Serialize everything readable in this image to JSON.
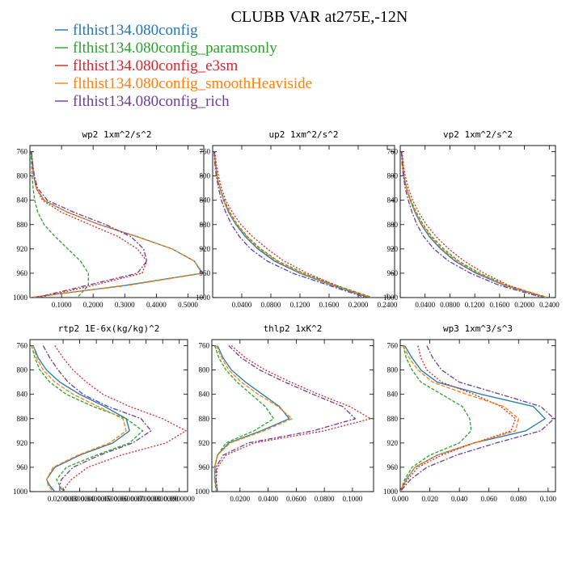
{
  "figure": {
    "title": "CLUBB VAR at275E,-12N"
  },
  "series": [
    {
      "name": "flthist134.080config",
      "color": "#1f77b4",
      "dash": ""
    },
    {
      "name": "flthist134.080config_paramsonly",
      "color": "#2ca02c",
      "dash": "4,2"
    },
    {
      "name": "flthist134.080config_e3sm",
      "color": "#d62728",
      "dash": "2,2"
    },
    {
      "name": "flthist134.080config_smoothHeaviside",
      "color": "#ff7f0e",
      "dash": "5,2"
    },
    {
      "name": "flthist134.080config_rich",
      "color": "#6a3d9a",
      "dash": "6,2,2,2"
    }
  ],
  "chart_data": [
    {
      "type": "line",
      "title": "wp2  1xm^2/s^2",
      "xlim": [
        0.0,
        0.55
      ],
      "ylim": [
        1000,
        750
      ],
      "xticks": [
        "0.1000",
        "0.2000",
        "0.3000",
        "0.4000",
        "0.5000"
      ],
      "xtick_values": [
        0.1,
        0.2,
        0.3,
        0.4,
        0.5
      ],
      "yticks": [
        "760",
        "800",
        "840",
        "880",
        "920",
        "960",
        "1000"
      ],
      "y": [
        760,
        780,
        800,
        820,
        840,
        860,
        880,
        900,
        920,
        940,
        960,
        980,
        1000
      ],
      "series": [
        {
          "values": [
            0.005,
            0.008,
            0.012,
            0.02,
            0.045,
            0.12,
            0.22,
            0.34,
            0.45,
            0.52,
            0.545,
            0.3,
            0.0
          ]
        },
        {
          "values": [
            0.003,
            0.005,
            0.007,
            0.01,
            0.015,
            0.025,
            0.045,
            0.08,
            0.12,
            0.16,
            0.185,
            0.185,
            0.15
          ]
        },
        {
          "values": [
            0.005,
            0.008,
            0.012,
            0.02,
            0.04,
            0.1,
            0.19,
            0.28,
            0.34,
            0.37,
            0.355,
            0.2,
            0.03
          ]
        },
        {
          "values": [
            0.005,
            0.008,
            0.012,
            0.02,
            0.045,
            0.12,
            0.22,
            0.34,
            0.45,
            0.52,
            0.548,
            0.31,
            0.0
          ]
        },
        {
          "values": [
            0.005,
            0.009,
            0.014,
            0.024,
            0.055,
            0.14,
            0.24,
            0.32,
            0.36,
            0.37,
            0.34,
            0.18,
            0.02
          ]
        }
      ]
    },
    {
      "type": "line",
      "title": "up2  1xm^2/s^2",
      "xlim": [
        0.0,
        0.25
      ],
      "ylim": [
        1000,
        750
      ],
      "xticks": [
        "0.0400",
        "0.0800",
        "0.1200",
        "0.1600",
        "0.2000",
        "0.2400"
      ],
      "xtick_values": [
        0.04,
        0.08,
        0.12,
        0.16,
        0.2,
        0.24
      ],
      "yticks": [
        "760",
        "800",
        "840",
        "880",
        "920",
        "960",
        "1000"
      ],
      "y": [
        760,
        780,
        800,
        820,
        840,
        860,
        880,
        900,
        920,
        940,
        960,
        980,
        1000
      ],
      "series": [
        {
          "values": [
            0.002,
            0.004,
            0.006,
            0.01,
            0.015,
            0.022,
            0.032,
            0.045,
            0.062,
            0.085,
            0.12,
            0.165,
            0.215
          ]
        },
        {
          "values": [
            0.002,
            0.004,
            0.006,
            0.01,
            0.016,
            0.024,
            0.034,
            0.048,
            0.066,
            0.09,
            0.125,
            0.17,
            0.22
          ]
        },
        {
          "values": [
            0.003,
            0.005,
            0.008,
            0.012,
            0.018,
            0.027,
            0.039,
            0.055,
            0.075,
            0.098,
            0.13,
            0.17,
            0.215
          ]
        },
        {
          "values": [
            0.002,
            0.004,
            0.006,
            0.01,
            0.015,
            0.023,
            0.033,
            0.047,
            0.064,
            0.088,
            0.122,
            0.167,
            0.218
          ]
        },
        {
          "values": [
            0.002,
            0.003,
            0.005,
            0.008,
            0.012,
            0.018,
            0.026,
            0.037,
            0.052,
            0.075,
            0.11,
            0.16,
            0.21
          ]
        }
      ]
    },
    {
      "type": "line",
      "title": "vp2  1xm^2/s^2",
      "xlim": [
        0.0,
        0.25
      ],
      "ylim": [
        1000,
        750
      ],
      "xticks": [
        "0.0400",
        "0.0800",
        "0.1200",
        "0.1600",
        "0.2000",
        "0.2400"
      ],
      "xtick_values": [
        0.04,
        0.08,
        0.12,
        0.16,
        0.2,
        0.24
      ],
      "yticks": [
        "760",
        "800",
        "840",
        "880",
        "920",
        "960",
        "1000"
      ],
      "y": [
        760,
        780,
        800,
        820,
        840,
        860,
        880,
        900,
        920,
        940,
        960,
        980,
        1000
      ],
      "series": [
        {
          "values": [
            0.002,
            0.004,
            0.006,
            0.01,
            0.016,
            0.024,
            0.034,
            0.047,
            0.065,
            0.088,
            0.122,
            0.168,
            0.235
          ]
        },
        {
          "values": [
            0.002,
            0.004,
            0.006,
            0.01,
            0.017,
            0.026,
            0.037,
            0.051,
            0.07,
            0.094,
            0.128,
            0.172,
            0.238
          ]
        },
        {
          "values": [
            0.003,
            0.005,
            0.008,
            0.013,
            0.02,
            0.03,
            0.042,
            0.058,
            0.078,
            0.103,
            0.135,
            0.175,
            0.235
          ]
        },
        {
          "values": [
            0.002,
            0.004,
            0.006,
            0.01,
            0.016,
            0.025,
            0.035,
            0.049,
            0.067,
            0.091,
            0.125,
            0.17,
            0.237
          ]
        },
        {
          "values": [
            0.002,
            0.003,
            0.005,
            0.008,
            0.013,
            0.019,
            0.027,
            0.038,
            0.054,
            0.078,
            0.113,
            0.16,
            0.23
          ]
        }
      ]
    },
    {
      "type": "line",
      "title": "rtp2  1E-6x(kg/kg)^2",
      "xlim": [
        0.0,
        0.095
      ],
      "ylim": [
        1000,
        750
      ],
      "xticks": [
        "0.0200000",
        "0.0300000",
        "0.0400000",
        "0.0500000",
        "0.0600000",
        "0.0700000",
        "0.0800000",
        "0.0900000"
      ],
      "xtick_values": [
        0.02,
        0.03,
        0.04,
        0.05,
        0.06,
        0.07,
        0.08,
        0.09
      ],
      "yticks": [
        "760",
        "800",
        "840",
        "880",
        "920",
        "960",
        "1000"
      ],
      "y": [
        760,
        780,
        800,
        820,
        840,
        860,
        880,
        900,
        920,
        940,
        960,
        980,
        990,
        1000
      ],
      "series": [
        {
          "values": [
            0.002,
            0.005,
            0.01,
            0.018,
            0.03,
            0.045,
            0.058,
            0.06,
            0.05,
            0.03,
            0.015,
            0.01,
            0.012,
            0.015
          ]
        },
        {
          "values": [
            0.001,
            0.003,
            0.006,
            0.012,
            0.022,
            0.038,
            0.058,
            0.068,
            0.06,
            0.04,
            0.022,
            0.016,
            0.018,
            0.02
          ]
        },
        {
          "values": [
            0.015,
            0.02,
            0.026,
            0.034,
            0.044,
            0.06,
            0.08,
            0.094,
            0.082,
            0.055,
            0.035,
            0.025,
            0.022,
            0.02
          ]
        },
        {
          "values": [
            0.002,
            0.004,
            0.008,
            0.015,
            0.026,
            0.041,
            0.056,
            0.058,
            0.048,
            0.029,
            0.014,
            0.01,
            0.011,
            0.014
          ]
        },
        {
          "values": [
            0.008,
            0.012,
            0.017,
            0.023,
            0.032,
            0.047,
            0.067,
            0.073,
            0.062,
            0.042,
            0.026,
            0.019,
            0.018,
            0.018
          ]
        }
      ]
    },
    {
      "type": "line",
      "title": "thlp2  1xK^2",
      "xlim": [
        0.0,
        0.115
      ],
      "ylim": [
        1000,
        750
      ],
      "xticks": [
        "0.0200",
        "0.0400",
        "0.0600",
        "0.0800",
        "0.1000"
      ],
      "xtick_values": [
        0.02,
        0.04,
        0.06,
        0.08,
        0.1
      ],
      "yticks": [
        "760",
        "800",
        "840",
        "880",
        "920",
        "960",
        "1000"
      ],
      "y": [
        760,
        780,
        800,
        820,
        840,
        860,
        880,
        900,
        920,
        940,
        960,
        980,
        1000
      ],
      "series": [
        {
          "values": [
            0.004,
            0.008,
            0.014,
            0.024,
            0.036,
            0.048,
            0.055,
            0.035,
            0.012,
            0.004,
            0.002,
            0.002,
            0.004
          ]
        },
        {
          "values": [
            0.002,
            0.005,
            0.01,
            0.018,
            0.028,
            0.038,
            0.044,
            0.03,
            0.01,
            0.004,
            0.002,
            0.002,
            0.003
          ]
        },
        {
          "values": [
            0.014,
            0.024,
            0.038,
            0.056,
            0.076,
            0.098,
            0.113,
            0.08,
            0.03,
            0.01,
            0.004,
            0.003,
            0.004
          ]
        },
        {
          "values": [
            0.003,
            0.007,
            0.012,
            0.021,
            0.033,
            0.047,
            0.057,
            0.037,
            0.013,
            0.004,
            0.002,
            0.002,
            0.004
          ]
        },
        {
          "values": [
            0.012,
            0.021,
            0.034,
            0.052,
            0.072,
            0.093,
            0.102,
            0.072,
            0.026,
            0.008,
            0.003,
            0.003,
            0.004
          ]
        }
      ]
    },
    {
      "type": "line",
      "title": "wp3  1xm^3/s^3",
      "xlim": [
        0.0,
        0.105
      ],
      "ylim": [
        1000,
        750
      ],
      "xticks": [
        "0.000",
        "0.020",
        "0.040",
        "0.060",
        "0.080",
        "0.100"
      ],
      "xtick_values": [
        0.0,
        0.02,
        0.04,
        0.06,
        0.08,
        0.1
      ],
      "yticks": [
        "760",
        "800",
        "840",
        "880",
        "920",
        "960",
        "1000"
      ],
      "y": [
        760,
        780,
        800,
        820,
        840,
        860,
        880,
        900,
        920,
        940,
        960,
        980,
        1000
      ],
      "series": [
        {
          "values": [
            0.003,
            0.008,
            0.014,
            0.025,
            0.055,
            0.09,
            0.098,
            0.085,
            0.05,
            0.025,
            0.01,
            0.004,
            0.0
          ]
        },
        {
          "values": [
            0.002,
            0.004,
            0.008,
            0.014,
            0.028,
            0.042,
            0.047,
            0.048,
            0.04,
            0.02,
            0.008,
            0.003,
            0.0
          ]
        },
        {
          "values": [
            0.012,
            0.014,
            0.018,
            0.028,
            0.05,
            0.068,
            0.078,
            0.075,
            0.05,
            0.028,
            0.012,
            0.005,
            0.0
          ]
        },
        {
          "values": [
            0.002,
            0.006,
            0.012,
            0.022,
            0.045,
            0.07,
            0.08,
            0.078,
            0.05,
            0.025,
            0.01,
            0.004,
            0.0
          ]
        },
        {
          "values": [
            0.018,
            0.022,
            0.028,
            0.04,
            0.068,
            0.095,
            0.104,
            0.095,
            0.065,
            0.038,
            0.018,
            0.007,
            0.0
          ]
        }
      ]
    }
  ]
}
